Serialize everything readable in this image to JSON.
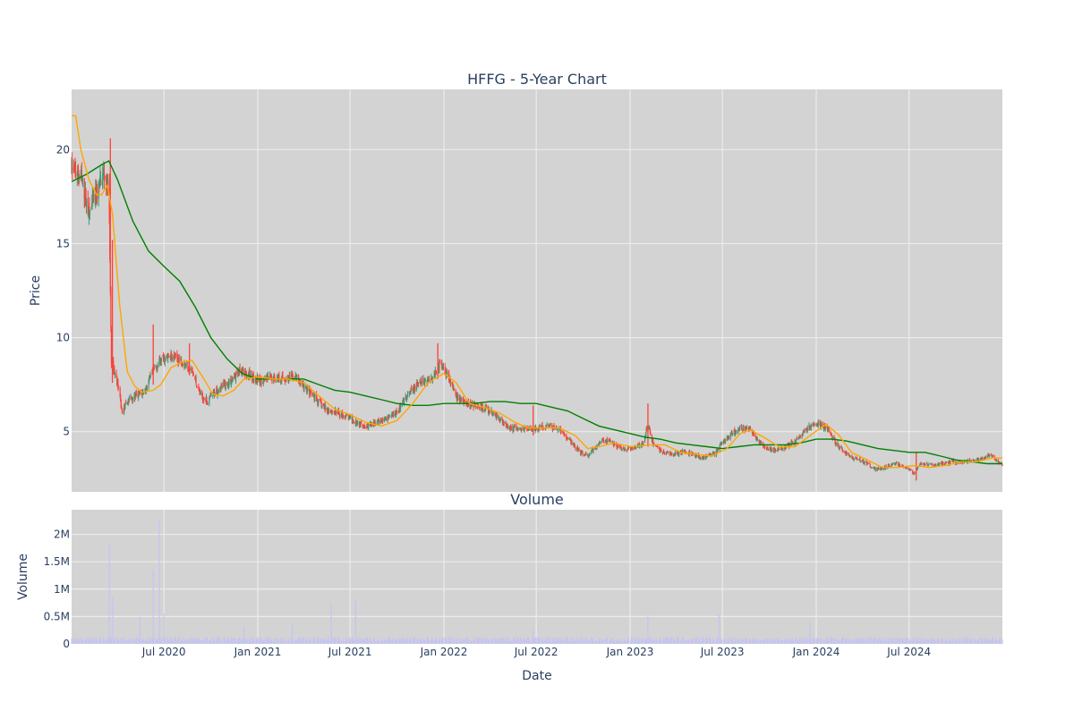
{
  "chart_data": [
    {
      "type": "candlestick",
      "title": "HFFG - 5-Year Chart",
      "ylabel": "Price",
      "ylim": [
        1.8,
        23.2
      ],
      "grid": true,
      "y_ticks": [
        5,
        10,
        15,
        20
      ],
      "x_range": [
        "2020-01-02",
        "2024-12-31"
      ],
      "x_ticks": [
        "2020-07-01",
        "2021-01-01",
        "2021-07-01",
        "2022-01-01",
        "2022-07-01",
        "2023-01-01",
        "2023-07-01",
        "2024-01-01",
        "2024-07-01"
      ],
      "colors": {
        "up": "#3d9970",
        "down": "#ff4136",
        "ma_short": "#ffa500",
        "ma_long": "#008000",
        "plot_bg": "#d3d3d3"
      },
      "price_path": [
        [
          "2020-01-02",
          19.0
        ],
        [
          "2020-01-20",
          18.6
        ],
        [
          "2020-02-05",
          16.6
        ],
        [
          "2020-02-20",
          17.6
        ],
        [
          "2020-03-05",
          18.8
        ],
        [
          "2020-03-15",
          17.8
        ],
        [
          "2020-03-20",
          8.8
        ],
        [
          "2020-04-01",
          7.6
        ],
        [
          "2020-04-10",
          6.0
        ],
        [
          "2020-04-25",
          6.8
        ],
        [
          "2020-05-10",
          6.9
        ],
        [
          "2020-05-25",
          7.2
        ],
        [
          "2020-06-10",
          8.2
        ],
        [
          "2020-06-25",
          8.8
        ],
        [
          "2020-07-15",
          9.0
        ],
        [
          "2020-08-05",
          8.8
        ],
        [
          "2020-08-25",
          8.2
        ],
        [
          "2020-09-10",
          7.0
        ],
        [
          "2020-09-25",
          6.6
        ],
        [
          "2020-10-15",
          7.3
        ],
        [
          "2020-11-05",
          7.6
        ],
        [
          "2020-11-25",
          8.2
        ],
        [
          "2020-12-15",
          8.0
        ],
        [
          "2021-01-05",
          7.7
        ],
        [
          "2021-02-01",
          7.9
        ],
        [
          "2021-02-25",
          7.8
        ],
        [
          "2021-03-15",
          7.9
        ],
        [
          "2021-04-05",
          7.3
        ],
        [
          "2021-04-25",
          6.7
        ],
        [
          "2021-05-15",
          6.2
        ],
        [
          "2021-06-05",
          6.0
        ],
        [
          "2021-06-25",
          5.8
        ],
        [
          "2021-07-15",
          5.5
        ],
        [
          "2021-08-05",
          5.3
        ],
        [
          "2021-08-25",
          5.5
        ],
        [
          "2021-09-15",
          5.8
        ],
        [
          "2021-10-05",
          6.2
        ],
        [
          "2021-10-25",
          7.0
        ],
        [
          "2021-11-15",
          7.6
        ],
        [
          "2021-12-05",
          7.8
        ],
        [
          "2021-12-25",
          8.6
        ],
        [
          "2022-01-10",
          8.0
        ],
        [
          "2022-01-25",
          6.8
        ],
        [
          "2022-02-15",
          6.5
        ],
        [
          "2022-03-05",
          6.4
        ],
        [
          "2022-03-25",
          6.2
        ],
        [
          "2022-04-15",
          5.8
        ],
        [
          "2022-05-05",
          5.3
        ],
        [
          "2022-05-25",
          5.1
        ],
        [
          "2022-06-15",
          5.2
        ],
        [
          "2022-07-05",
          5.2
        ],
        [
          "2022-07-25",
          5.3
        ],
        [
          "2022-08-15",
          5.1
        ],
        [
          "2022-09-05",
          4.5
        ],
        [
          "2022-09-25",
          3.9
        ],
        [
          "2022-10-10",
          3.7
        ],
        [
          "2022-10-25",
          4.2
        ],
        [
          "2022-11-10",
          4.6
        ],
        [
          "2022-11-25",
          4.4
        ],
        [
          "2022-12-15",
          4.1
        ],
        [
          "2023-01-05",
          4.1
        ],
        [
          "2023-01-25",
          4.3
        ],
        [
          "2023-02-05",
          5.4
        ],
        [
          "2023-02-15",
          4.4
        ],
        [
          "2023-03-05",
          3.9
        ],
        [
          "2023-03-25",
          3.8
        ],
        [
          "2023-04-15",
          3.9
        ],
        [
          "2023-05-05",
          3.8
        ],
        [
          "2023-05-25",
          3.6
        ],
        [
          "2023-06-15",
          3.8
        ],
        [
          "2023-07-01",
          4.4
        ],
        [
          "2023-07-20",
          4.9
        ],
        [
          "2023-08-05",
          5.2
        ],
        [
          "2023-08-25",
          5.1
        ],
        [
          "2023-09-10",
          4.5
        ],
        [
          "2023-09-25",
          4.1
        ],
        [
          "2023-10-15",
          4.0
        ],
        [
          "2023-11-05",
          4.2
        ],
        [
          "2023-11-25",
          4.6
        ],
        [
          "2023-12-15",
          5.2
        ],
        [
          "2024-01-05",
          5.4
        ],
        [
          "2024-01-25",
          5.1
        ],
        [
          "2024-02-10",
          4.3
        ],
        [
          "2024-02-25",
          3.9
        ],
        [
          "2024-03-15",
          3.6
        ],
        [
          "2024-04-05",
          3.4
        ],
        [
          "2024-04-25",
          3.0
        ],
        [
          "2024-05-15",
          3.1
        ],
        [
          "2024-06-05",
          3.3
        ],
        [
          "2024-06-25",
          3.1
        ],
        [
          "2024-07-10",
          2.8
        ],
        [
          "2024-07-25",
          3.3
        ],
        [
          "2024-08-15",
          3.2
        ],
        [
          "2024-09-05",
          3.3
        ],
        [
          "2024-09-25",
          3.4
        ],
        [
          "2024-10-15",
          3.4
        ],
        [
          "2024-11-05",
          3.5
        ],
        [
          "2024-11-25",
          3.6
        ],
        [
          "2024-12-05",
          3.8
        ],
        [
          "2024-12-31",
          3.2
        ]
      ],
      "spikes": [
        [
          "2020-03-18",
          20.6,
          14.5
        ],
        [
          "2020-03-22",
          15.2,
          7.6
        ],
        [
          "2020-06-10",
          10.7,
          7.5
        ],
        [
          "2020-08-20",
          9.7,
          8.0
        ],
        [
          "2021-12-20",
          9.7,
          7.8
        ],
        [
          "2023-02-05",
          6.5,
          4.2
        ],
        [
          "2024-07-15",
          3.9,
          2.4
        ],
        [
          "2022-06-25",
          6.4,
          4.8
        ]
      ],
      "ma_short": [
        [
          "2020-01-02",
          21.8
        ],
        [
          "2020-01-10",
          21.8
        ],
        [
          "2020-01-20",
          20.0
        ],
        [
          "2020-02-05",
          18.4
        ],
        [
          "2020-02-20",
          17.6
        ],
        [
          "2020-03-01",
          17.6
        ],
        [
          "2020-03-12",
          18.1
        ],
        [
          "2020-03-22",
          16.6
        ],
        [
          "2020-04-05",
          11.8
        ],
        [
          "2020-04-20",
          8.2
        ],
        [
          "2020-05-05",
          7.4
        ],
        [
          "2020-05-20",
          7.1
        ],
        [
          "2020-06-10",
          7.2
        ],
        [
          "2020-06-25",
          7.5
        ],
        [
          "2020-07-15",
          8.4
        ],
        [
          "2020-08-05",
          8.7
        ],
        [
          "2020-08-25",
          8.8
        ],
        [
          "2020-09-15",
          7.9
        ],
        [
          "2020-10-05",
          7.0
        ],
        [
          "2020-10-25",
          6.9
        ],
        [
          "2020-11-15",
          7.2
        ],
        [
          "2020-12-05",
          7.8
        ],
        [
          "2021-01-01",
          7.9
        ],
        [
          "2021-02-01",
          7.8
        ],
        [
          "2021-03-01",
          7.8
        ],
        [
          "2021-04-01",
          7.6
        ],
        [
          "2021-05-01",
          6.9
        ],
        [
          "2021-06-01",
          6.2
        ],
        [
          "2021-07-01",
          5.9
        ],
        [
          "2021-08-01",
          5.5
        ],
        [
          "2021-09-01",
          5.3
        ],
        [
          "2021-10-01",
          5.6
        ],
        [
          "2021-11-01",
          6.5
        ],
        [
          "2021-12-01",
          7.6
        ],
        [
          "2022-01-01",
          8.1
        ],
        [
          "2022-01-25",
          7.6
        ],
        [
          "2022-02-20",
          6.5
        ],
        [
          "2022-03-20",
          6.3
        ],
        [
          "2022-04-20",
          6.0
        ],
        [
          "2022-05-20",
          5.5
        ],
        [
          "2022-06-15",
          5.2
        ],
        [
          "2022-07-15",
          5.2
        ],
        [
          "2022-08-15",
          5.2
        ],
        [
          "2022-09-15",
          4.8
        ],
        [
          "2022-10-10",
          4.1
        ],
        [
          "2022-11-01",
          4.2
        ],
        [
          "2022-12-01",
          4.4
        ],
        [
          "2023-01-01",
          4.2
        ],
        [
          "2023-02-10",
          4.3
        ],
        [
          "2023-03-10",
          4.3
        ],
        [
          "2023-04-10",
          3.9
        ],
        [
          "2023-05-10",
          3.8
        ],
        [
          "2023-06-10",
          3.7
        ],
        [
          "2023-07-10",
          4.1
        ],
        [
          "2023-08-05",
          4.9
        ],
        [
          "2023-08-25",
          5.1
        ],
        [
          "2023-09-20",
          4.7
        ],
        [
          "2023-10-20",
          4.2
        ],
        [
          "2023-11-20",
          4.2
        ],
        [
          "2023-12-20",
          4.8
        ],
        [
          "2024-01-20",
          5.4
        ],
        [
          "2024-02-15",
          4.8
        ],
        [
          "2024-03-10",
          3.9
        ],
        [
          "2024-04-10",
          3.5
        ],
        [
          "2024-05-10",
          3.1
        ],
        [
          "2024-06-10",
          3.1
        ],
        [
          "2024-07-10",
          3.2
        ],
        [
          "2024-08-10",
          3.1
        ],
        [
          "2024-09-10",
          3.2
        ],
        [
          "2024-10-10",
          3.4
        ],
        [
          "2024-11-10",
          3.4
        ],
        [
          "2024-12-10",
          3.6
        ],
        [
          "2024-12-31",
          3.6
        ]
      ],
      "ma_long": [
        [
          "2020-01-02",
          18.3
        ],
        [
          "2020-02-01",
          18.7
        ],
        [
          "2020-03-01",
          19.2
        ],
        [
          "2020-03-15",
          19.4
        ],
        [
          "2020-04-01",
          18.4
        ],
        [
          "2020-05-01",
          16.2
        ],
        [
          "2020-06-01",
          14.6
        ],
        [
          "2020-07-01",
          13.8
        ],
        [
          "2020-08-01",
          13.0
        ],
        [
          "2020-09-01",
          11.6
        ],
        [
          "2020-10-01",
          10.0
        ],
        [
          "2020-11-01",
          8.9
        ],
        [
          "2020-12-01",
          8.1
        ],
        [
          "2021-01-01",
          7.8
        ],
        [
          "2021-02-01",
          7.8
        ],
        [
          "2021-03-01",
          7.8
        ],
        [
          "2021-04-01",
          7.8
        ],
        [
          "2021-05-01",
          7.5
        ],
        [
          "2021-06-01",
          7.2
        ],
        [
          "2021-07-01",
          7.1
        ],
        [
          "2021-08-01",
          6.9
        ],
        [
          "2021-09-01",
          6.7
        ],
        [
          "2021-10-01",
          6.5
        ],
        [
          "2021-11-01",
          6.4
        ],
        [
          "2021-12-01",
          6.4
        ],
        [
          "2022-01-01",
          6.5
        ],
        [
          "2022-02-01",
          6.5
        ],
        [
          "2022-03-01",
          6.5
        ],
        [
          "2022-04-01",
          6.6
        ],
        [
          "2022-05-01",
          6.6
        ],
        [
          "2022-06-01",
          6.5
        ],
        [
          "2022-07-01",
          6.5
        ],
        [
          "2022-08-01",
          6.3
        ],
        [
          "2022-09-01",
          6.1
        ],
        [
          "2022-10-01",
          5.7
        ],
        [
          "2022-11-01",
          5.3
        ],
        [
          "2022-12-01",
          5.1
        ],
        [
          "2023-01-01",
          4.9
        ],
        [
          "2023-02-01",
          4.7
        ],
        [
          "2023-03-01",
          4.6
        ],
        [
          "2023-04-01",
          4.4
        ],
        [
          "2023-05-01",
          4.3
        ],
        [
          "2023-06-01",
          4.2
        ],
        [
          "2023-07-01",
          4.1
        ],
        [
          "2023-08-01",
          4.2
        ],
        [
          "2023-09-01",
          4.3
        ],
        [
          "2023-10-01",
          4.3
        ],
        [
          "2023-11-01",
          4.3
        ],
        [
          "2023-12-01",
          4.4
        ],
        [
          "2024-01-01",
          4.6
        ],
        [
          "2024-02-01",
          4.6
        ],
        [
          "2024-03-01",
          4.5
        ],
        [
          "2024-04-01",
          4.3
        ],
        [
          "2024-05-01",
          4.1
        ],
        [
          "2024-06-01",
          4.0
        ],
        [
          "2024-07-01",
          3.9
        ],
        [
          "2024-08-01",
          3.9
        ],
        [
          "2024-09-01",
          3.7
        ],
        [
          "2024-10-01",
          3.5
        ],
        [
          "2024-11-01",
          3.4
        ],
        [
          "2024-12-01",
          3.3
        ],
        [
          "2024-12-31",
          3.3
        ]
      ]
    },
    {
      "type": "bar",
      "title": "Volume",
      "xlabel": "Date",
      "ylabel": "Volume",
      "ylim": [
        0,
        2450000
      ],
      "y_ticks": [
        0,
        500000,
        1000000,
        1500000,
        2000000
      ],
      "y_tick_labels": [
        "0",
        "0.5M",
        "1M",
        "1.5M",
        "2M"
      ],
      "x_ticks": [
        "2020-07-01",
        "2021-01-01",
        "2021-07-01",
        "2022-01-01",
        "2022-07-01",
        "2023-01-01",
        "2023-07-01",
        "2024-01-01",
        "2024-07-01"
      ],
      "x_tick_labels": [
        "Jul 2020",
        "Jan 2021",
        "Jul 2021",
        "Jan 2022",
        "Jul 2022",
        "Jan 2023",
        "Jul 2023",
        "Jan 2024",
        "Jul 2024"
      ],
      "bar_color": "#c4c4f0",
      "volume_spikes": [
        [
          "2020-03-16",
          1850000
        ],
        [
          "2020-03-23",
          850000
        ],
        [
          "2020-06-10",
          1350000
        ],
        [
          "2020-06-22",
          2250000
        ],
        [
          "2020-07-01",
          550000
        ],
        [
          "2020-05-15",
          500000
        ],
        [
          "2021-05-25",
          750000
        ],
        [
          "2021-07-12",
          800000
        ],
        [
          "2021-03-10",
          380000
        ],
        [
          "2023-02-05",
          520000
        ],
        [
          "2023-06-25",
          530000
        ],
        [
          "2023-12-20",
          400000
        ],
        [
          "2020-12-05",
          300000
        ],
        [
          "2022-06-25",
          250000
        ]
      ]
    }
  ]
}
